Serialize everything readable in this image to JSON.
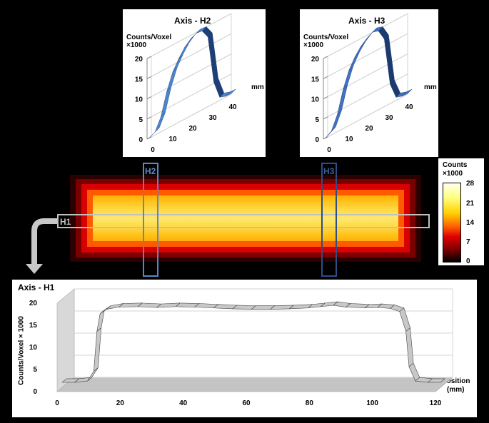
{
  "colors": {
    "bar_blue": "#3d74c0",
    "bar_dark": "#1d3f78",
    "h1_line": "#c0c0c0",
    "h2_box": "#5b86c8",
    "h3_box": "#2e4e86",
    "heat_low": "#000000",
    "heat_mid": "#ff0000",
    "heat_high": "#ffffaa"
  },
  "colorbar": {
    "title_line1": "Counts",
    "title_line2": "×1000",
    "ticks": [
      "28",
      "21",
      "14",
      "7",
      "0"
    ],
    "range": [
      0,
      28
    ]
  },
  "image_labels": {
    "h1": "H1",
    "h2": "H2",
    "h3": "H3"
  },
  "arrow_icon": "curved-arrow-down",
  "chart_data": [
    {
      "type": "line",
      "title": "Axis - H2",
      "ylabel_line1": "Counts/Voxel",
      "ylabel_line2": "×1000",
      "xlabel": "mm",
      "y_ticks": [
        "20",
        "15",
        "10",
        "5",
        "0"
      ],
      "x_ticks": [
        "0",
        "10",
        "20",
        "30",
        "40"
      ],
      "ylim": [
        0,
        20
      ],
      "xlim": [
        0,
        40
      ],
      "x": [
        0,
        3,
        6,
        9,
        12,
        15,
        18,
        21,
        24,
        27,
        30,
        33,
        36,
        39,
        42
      ],
      "y": [
        0.3,
        1.0,
        4.0,
        9.5,
        13.5,
        16.0,
        18.0,
        19.3,
        20.0,
        19.8,
        17.5,
        5.5,
        1.0,
        0.5,
        0.4
      ]
    },
    {
      "type": "line",
      "title": "Axis - H3",
      "ylabel_line1": "Counts/Voxel",
      "ylabel_line2": "×1000",
      "xlabel": "mm",
      "y_ticks": [
        "20",
        "15",
        "10",
        "5",
        "0"
      ],
      "x_ticks": [
        "0",
        "10",
        "20",
        "30",
        "40"
      ],
      "ylim": [
        0,
        20
      ],
      "xlim": [
        0,
        40
      ],
      "x": [
        0,
        3,
        6,
        9,
        12,
        15,
        18,
        21,
        24,
        27,
        30,
        33,
        36,
        39,
        42
      ],
      "y": [
        0.3,
        1.2,
        4.5,
        10.0,
        14.0,
        16.5,
        18.3,
        19.5,
        20.3,
        19.8,
        17.0,
        5.0,
        1.0,
        0.5,
        0.4
      ]
    },
    {
      "type": "line",
      "title": "Axis - H1",
      "ylabel": "Counts/Voxel × 1000",
      "xlabel_line1": "Position",
      "xlabel_line2": "(mm)",
      "y_ticks": [
        "20",
        "15",
        "10",
        "5",
        "0"
      ],
      "x_ticks": [
        "0",
        "20",
        "40",
        "60",
        "80",
        "100",
        "120"
      ],
      "ylim": [
        0,
        20
      ],
      "xlim": [
        0,
        120
      ],
      "x": [
        0,
        4,
        8,
        10,
        11,
        12,
        14,
        18,
        24,
        30,
        36,
        42,
        48,
        54,
        60,
        66,
        72,
        78,
        82,
        86,
        90,
        96,
        100,
        104,
        107,
        109,
        110,
        112,
        116,
        120
      ],
      "y": [
        0.5,
        0.5,
        0.8,
        3,
        12,
        16,
        17,
        17.5,
        17.6,
        17.4,
        17.6,
        17.5,
        17.3,
        17.1,
        17.0,
        17.0,
        17.1,
        17.3,
        17.6,
        17.9,
        17.5,
        17.3,
        17.4,
        17.2,
        16.5,
        12,
        4,
        0.8,
        0.5,
        0.5
      ]
    }
  ]
}
